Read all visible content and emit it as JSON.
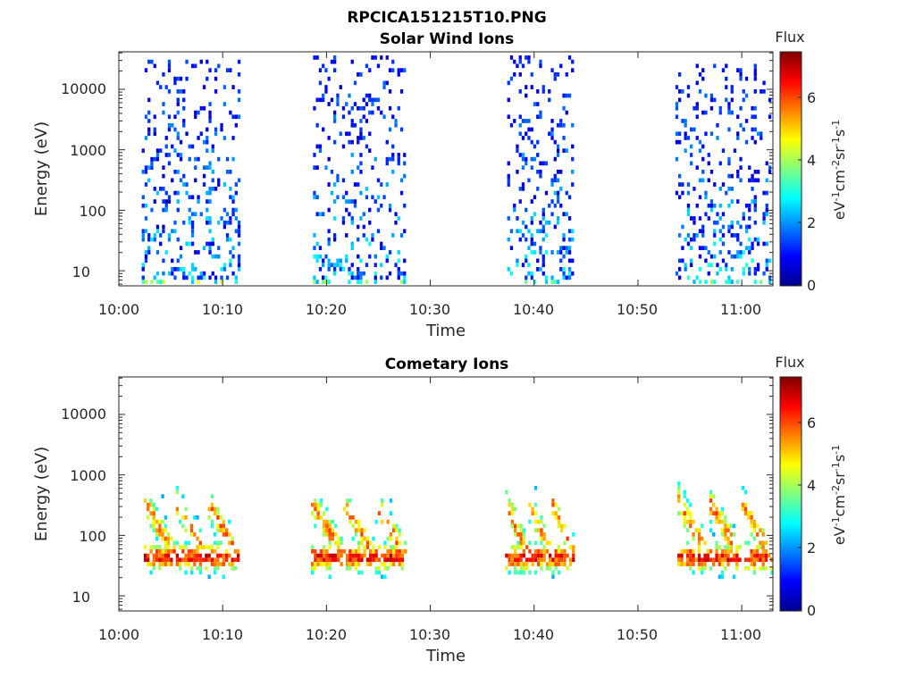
{
  "figure": {
    "title": "RPCICA151215T10.PNG"
  },
  "chart_data": [
    {
      "type": "heatmap",
      "title": "Solar Wind Ions",
      "xlabel": "Time",
      "ylabel": "Energy (eV)",
      "x_ticks": [
        "10:00",
        "10:10",
        "10:20",
        "10:30",
        "10:40",
        "10:50",
        "11:00"
      ],
      "y_ticks": [
        "10",
        "100",
        "1000",
        "10000"
      ],
      "colorbar": {
        "title": "Flux",
        "ticks": [
          "0",
          "2",
          "4",
          "6"
        ],
        "range": [
          0,
          7.4
        ],
        "unit": "eV-1cm-2sr-1s-1",
        "colormap": "jet"
      },
      "x_units": "minutes after 10:00",
      "y_units": "log10 energy (eV)",
      "xlim": [
        0,
        63
      ],
      "ylim_log10": [
        0.75,
        4.62
      ],
      "points": [
        {
          "name": "sw-burst-1",
          "t0": 2.2,
          "t1": 11.5,
          "peak": 4.8,
          "ymin": 0.78,
          "ymax": 4.45,
          "low_bias": 0.55,
          "low_frac": 0.32,
          "seed": 11,
          "fill": 0.26
        },
        {
          "name": "sw-burst-2",
          "t0": 18.7,
          "t1": 27.5,
          "peak": 4.5,
          "ymin": 0.78,
          "ymax": 4.58,
          "low_bias": 0.55,
          "low_frac": 0.3,
          "seed": 23,
          "fill": 0.26
        },
        {
          "name": "sw-burst-3",
          "t0": 37.4,
          "t1": 43.8,
          "peak": 4.4,
          "ymin": 0.78,
          "ymax": 4.5,
          "low_bias": 0.55,
          "low_frac": 0.34,
          "seed": 37,
          "fill": 0.26
        },
        {
          "name": "sw-burst-4",
          "t0": 53.6,
          "t1": 62.8,
          "peak": 4.4,
          "ymin": 0.78,
          "ymax": 4.4,
          "low_bias": 0.55,
          "low_frac": 0.32,
          "seed": 51,
          "fill": 0.28
        }
      ]
    },
    {
      "type": "heatmap",
      "title": "Cometary Ions",
      "xlabel": "Time",
      "ylabel": "Energy (eV)",
      "x_ticks": [
        "10:00",
        "10:10",
        "10:20",
        "10:30",
        "10:40",
        "10:50",
        "11:00"
      ],
      "y_ticks": [
        "10",
        "100",
        "1000",
        "10000"
      ],
      "colorbar": {
        "title": "Flux",
        "ticks": [
          "0",
          "2",
          "4",
          "6"
        ],
        "range": [
          0,
          7.4
        ],
        "unit": "eV-1cm-2sr-1s-1",
        "colormap": "jet"
      },
      "x_units": "minutes after 10:00",
      "y_units": "log10 energy (eV)",
      "xlim": [
        0,
        63
      ],
      "ylim_log10": [
        0.75,
        4.62
      ],
      "points": [
        {
          "name": "ci-burst-1",
          "t0": 2.4,
          "t1": 11.5,
          "peak": 7.2,
          "ymin": 1.0,
          "ymax": 2.9,
          "low_bias": 1.6,
          "low_frac": 0.85,
          "seed": 7,
          "fill": 0.62
        },
        {
          "name": "ci-burst-2",
          "t0": 18.5,
          "t1": 27.6,
          "peak": 7.2,
          "ymin": 1.0,
          "ymax": 2.6,
          "low_bias": 1.6,
          "low_frac": 0.85,
          "seed": 19,
          "fill": 0.6
        },
        {
          "name": "ci-burst-3",
          "t0": 37.2,
          "t1": 43.8,
          "peak": 7.2,
          "ymin": 1.0,
          "ymax": 2.9,
          "low_bias": 1.6,
          "low_frac": 0.85,
          "seed": 31,
          "fill": 0.6
        },
        {
          "name": "ci-burst-4",
          "t0": 53.8,
          "t1": 62.8,
          "peak": 7.3,
          "ymin": 1.0,
          "ymax": 3.3,
          "low_bias": 1.6,
          "low_frac": 0.85,
          "seed": 43,
          "fill": 0.6
        }
      ]
    }
  ]
}
